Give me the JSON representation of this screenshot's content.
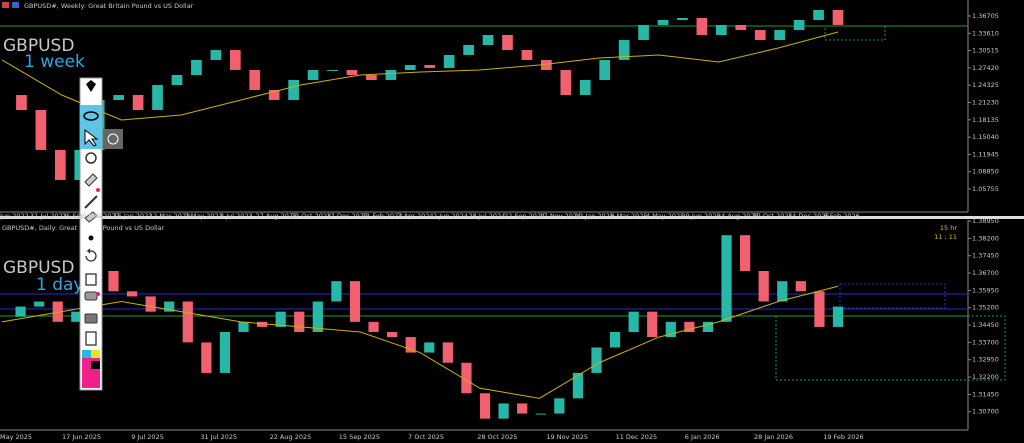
{
  "chart_data": [
    {
      "type": "candlestick",
      "title": "GBPUSD#, Weekly:  Great Britain Pound vs US Dollar",
      "symbol_label": "GBPUSD",
      "period_label": "1 week",
      "close": [
        1.2257,
        1.1989,
        1.1274,
        1.0737,
        1.1274,
        1.2168,
        1.2257,
        1.1989,
        1.2436,
        1.2615,
        1.2884,
        1.3062,
        1.2705,
        1.2347,
        1.2168,
        1.2526,
        1.2705,
        1.2705,
        1.2615,
        1.2526,
        1.2705,
        1.2794,
        1.2741,
        1.2973,
        1.3152,
        1.3331,
        1.3062,
        1.2884,
        1.2705,
        1.2257,
        1.2526,
        1.2884,
        1.3241,
        1.351,
        1.3599,
        1.3635,
        1.3331,
        1.351,
        1.342,
        1.3241,
        1.342,
        1.3599,
        1.3778,
        1.351
      ],
      "ma": [
        1.2884,
        1.2257,
        1.181,
        1.19,
        1.2168,
        1.2436,
        1.2615,
        1.2669,
        1.2705,
        1.2794,
        1.2919,
        1.2973,
        1.2848,
        1.3098,
        1.3385
      ],
      "ylim": [
        1.0164,
        1.3957
      ],
      "yticks": [
        1.36705,
        {
          "value": 1.3361,
          "label": "1.33610"
        },
        1.30515,
        {
          "value": 1.2742,
          "label": "1.27420"
        },
        1.24325,
        {
          "value": 1.2123,
          "label": "1.21230"
        },
        1.18135,
        {
          "value": 1.1504,
          "label": "1.15040"
        },
        1.11945,
        {
          "value": 1.0885,
          "label": "1.08850"
        },
        1.05755
      ],
      "time_labels": [
        "Jun 2022",
        "31 Jul 2022",
        "25 Sep 2022",
        "20 Nov 2022",
        "15 Jan 2023",
        "12 Mar 2023",
        "7 May 2023",
        "2 Jul 2023",
        "27 Aug 2023",
        "22 Oct 2023",
        "17 Dec 2023",
        "11 Feb 2024",
        "7 Apr 2024",
        "2 Jun 2024",
        "28 Jul 2024",
        "22 Sep 2024",
        "17 Nov 2024",
        "12 Jan 2025",
        "9 Mar 2025",
        "4 May 2025",
        "29 Jun 2025",
        "24 Aug 2025",
        "19 Oct 2025",
        "14 Dec 2025",
        "8 Feb 2026"
      ],
      "up_color": "#26b7a6",
      "down_color": "#f0606e",
      "ma_color": "#c8b400"
    },
    {
      "type": "candlestick",
      "title": "GBPUSD#, Daily:  Great Britain Pound vs US Dollar",
      "symbol_label": "GBPUSD",
      "period_label": "1 day",
      "close": [
        1.3481,
        1.3525,
        1.3547,
        1.3459,
        1.3503,
        1.3679,
        1.3591,
        1.3569,
        1.3503,
        1.3547,
        1.337,
        1.3238,
        1.3415,
        1.3459,
        1.3437,
        1.3503,
        1.3415,
        1.3547,
        1.3635,
        1.3459,
        1.3415,
        1.3393,
        1.3326,
        1.337,
        1.3282,
        1.315,
        1.304,
        1.3106,
        1.3062,
        1.3062,
        1.3128,
        1.3238,
        1.3348,
        1.3415,
        1.3503,
        1.3393,
        1.3459,
        1.3415,
        1.3459,
        1.3834,
        1.3679,
        1.3547,
        1.3635,
        1.3591,
        1.3437,
        1.3525
      ],
      "ma": [
        1.3459,
        1.3503,
        1.3547,
        1.3503,
        1.3459,
        1.3437,
        1.3415,
        1.3326,
        1.3172,
        1.3128,
        1.3282,
        1.3393,
        1.3459,
        1.3547,
        1.3613
      ],
      "ylim": [
        1.2991,
        1.3891
      ],
      "yticks": [
        {
          "value": 1.3895,
          "label": "1.38950"
        },
        {
          "value": 1.382,
          "label": "1.38200"
        },
        {
          "value": 1.3745,
          "label": "1.37450"
        },
        {
          "value": 1.367,
          "label": "1.36700"
        },
        {
          "value": 1.3595,
          "label": "1.35950"
        },
        {
          "value": 1.352,
          "label": "1.35200"
        },
        {
          "value": 1.3445,
          "label": "1.34450"
        },
        {
          "value": 1.337,
          "label": "1.33700"
        },
        {
          "value": 1.3295,
          "label": "1.32950"
        },
        {
          "value": 1.322,
          "label": "1.32200"
        },
        {
          "value": 1.3145,
          "label": "1.31450"
        },
        {
          "value": 1.307,
          "label": "1.30700"
        }
      ],
      "time_labels": [
        "May 2025",
        "17 Jun 2025",
        "9 Jul 2025",
        "31 Jul 2025",
        "22 Aug 2025",
        "15 Sep 2025",
        "7 Oct 2025",
        "28 Oct 2025",
        "19 Nov 2025",
        "11 Dec 2025",
        "6 Jan 2026",
        "28 Jan 2026",
        "19 Feb 2026"
      ],
      "timer": [
        "15 hr",
        "11 : 11"
      ],
      "up_color": "#26b7a6",
      "down_color": "#f0606e",
      "ma_color": "#c8b400"
    }
  ]
}
